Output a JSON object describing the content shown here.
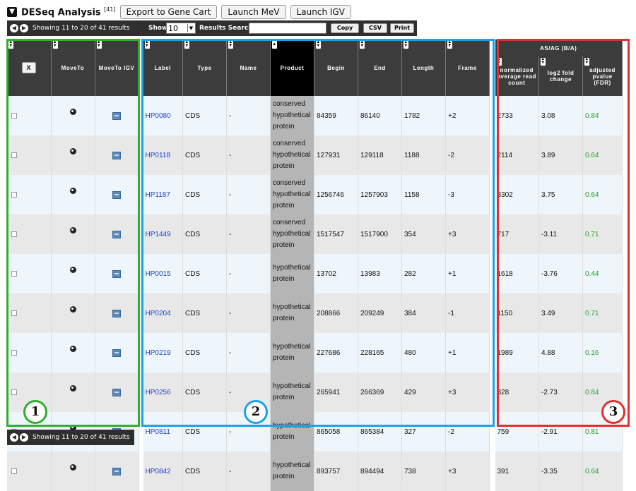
{
  "header": {
    "title": "DESeq Analysis",
    "count_sup": "[41]",
    "buttons": [
      "Export to Gene Cart",
      "Launch MeV",
      "Launch IGV"
    ]
  },
  "toolbar": {
    "showing": "Showing 11 to 20 of 41 results",
    "show_label": "Show",
    "page_size": "10",
    "results_label": "Results",
    "search_label": "Search:",
    "copy": "Copy",
    "csv": "CSV",
    "print": "Print"
  },
  "footer": {
    "showing": "Showing 11 to 20 of 41 results"
  },
  "columns": {
    "x": "X",
    "moveto": "MoveTo",
    "moveto_igv": "MoveTo IGV",
    "label": "Label",
    "type": "Type",
    "name": "Name",
    "product": "Product",
    "begin": "Begin",
    "end": "End",
    "length": "Length",
    "frame": "Frame",
    "group": "AS/AG (B/A)",
    "norm": "normalized average read count",
    "log2": "log2 fold change",
    "padj": "adjusted pvalue (FDR)"
  },
  "rows": [
    {
      "label": "HP0080",
      "type": "CDS",
      "name": "-",
      "product": "conserved hypothetical protein",
      "begin": "84359",
      "end": "86140",
      "length": "1782",
      "frame": "+2",
      "norm": "2733",
      "log2": "3.08",
      "padj": "0.84"
    },
    {
      "label": "HP0118",
      "type": "CDS",
      "name": "-",
      "product": "conserved hypothetical protein",
      "begin": "127931",
      "end": "129118",
      "length": "1188",
      "frame": "-2",
      "norm": "2114",
      "log2": "3.89",
      "padj": "0.64"
    },
    {
      "label": "HP1187",
      "type": "CDS",
      "name": "-",
      "product": "conserved hypothetical protein",
      "begin": "1256746",
      "end": "1257903",
      "length": "1158",
      "frame": "-3",
      "norm": "3302",
      "log2": "3.75",
      "padj": "0.64"
    },
    {
      "label": "HP1449",
      "type": "CDS",
      "name": "-",
      "product": "conserved hypothetical protein",
      "begin": "1517547",
      "end": "1517900",
      "length": "354",
      "frame": "+3",
      "norm": "717",
      "log2": "-3.11",
      "padj": "0.71"
    },
    {
      "label": "HP0015",
      "type": "CDS",
      "name": "-",
      "product": "hypothetical protein",
      "begin": "13702",
      "end": "13983",
      "length": "282",
      "frame": "+1",
      "norm": "1618",
      "log2": "-3.76",
      "padj": "0.44"
    },
    {
      "label": "HP0204",
      "type": "CDS",
      "name": "-",
      "product": "hypothetical protein",
      "begin": "208866",
      "end": "209249",
      "length": "384",
      "frame": "-1",
      "norm": "1150",
      "log2": "3.49",
      "padj": "0.71"
    },
    {
      "label": "HP0219",
      "type": "CDS",
      "name": "-",
      "product": "hypothetical protein",
      "begin": "227686",
      "end": "228165",
      "length": "480",
      "frame": "+1",
      "norm": "1989",
      "log2": "4.88",
      "padj": "0.16"
    },
    {
      "label": "HP0256",
      "type": "CDS",
      "name": "-",
      "product": "hypothetical protein",
      "begin": "265941",
      "end": "266369",
      "length": "429",
      "frame": "+3",
      "norm": "328",
      "log2": "-2.73",
      "padj": "0.84"
    },
    {
      "label": "HP0811",
      "type": "CDS",
      "name": "-",
      "product": "hypothetical protein",
      "begin": "865058",
      "end": "865384",
      "length": "327",
      "frame": "-2",
      "norm": "759",
      "log2": "-2.91",
      "padj": "0.81"
    },
    {
      "label": "HP0842",
      "type": "CDS",
      "name": "-",
      "product": "hypothetical protein",
      "begin": "893757",
      "end": "894494",
      "length": "738",
      "frame": "+3",
      "norm": "391",
      "log2": "-3.35",
      "padj": "0.64"
    }
  ],
  "annotations": [
    {
      "num": "1",
      "color": "#2fb02f"
    },
    {
      "num": "2",
      "color": "#1aa3e8"
    },
    {
      "num": "3",
      "color": "#e03030"
    }
  ]
}
